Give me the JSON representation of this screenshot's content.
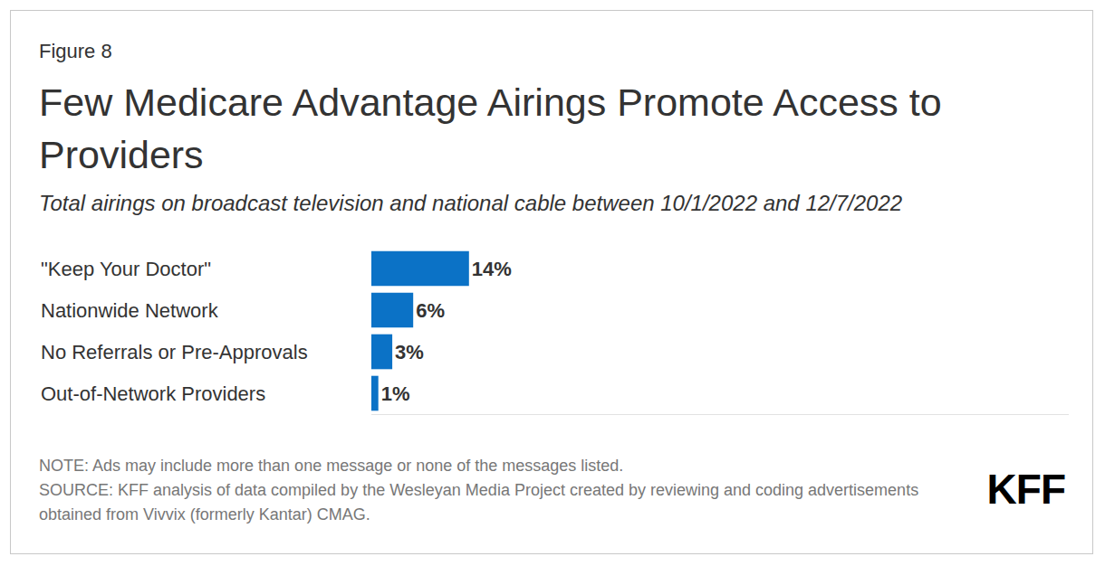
{
  "chart_data": {
    "type": "bar",
    "orientation": "horizontal",
    "figure_label": "Figure 8",
    "title": "Few Medicare Advantage Airings Promote Access to Providers",
    "subtitle": "Total airings on broadcast television and national cable between 10/1/2022 and 12/7/2022",
    "categories": [
      "\"Keep Your Doctor\"",
      "Nationwide Network",
      "No Referrals or Pre-Approvals",
      "Out-of-Network Providers"
    ],
    "values": [
      14,
      6,
      3,
      1
    ],
    "value_labels": [
      "14%",
      "6%",
      "3%",
      "1%"
    ],
    "color": "#0b72c6",
    "xlim": [
      0,
      100
    ],
    "xticks": [],
    "data_labels": true,
    "tick_labels": "y",
    "grid": false,
    "notes": [
      "NOTE: Ads may include more than one message or none of the messages listed.",
      "SOURCE: KFF analysis of data compiled by the Wesleyan Media Project created by reviewing and coding advertisements obtained from Vivvix (formerly Kantar) CMAG."
    ],
    "logo": "KFF"
  }
}
